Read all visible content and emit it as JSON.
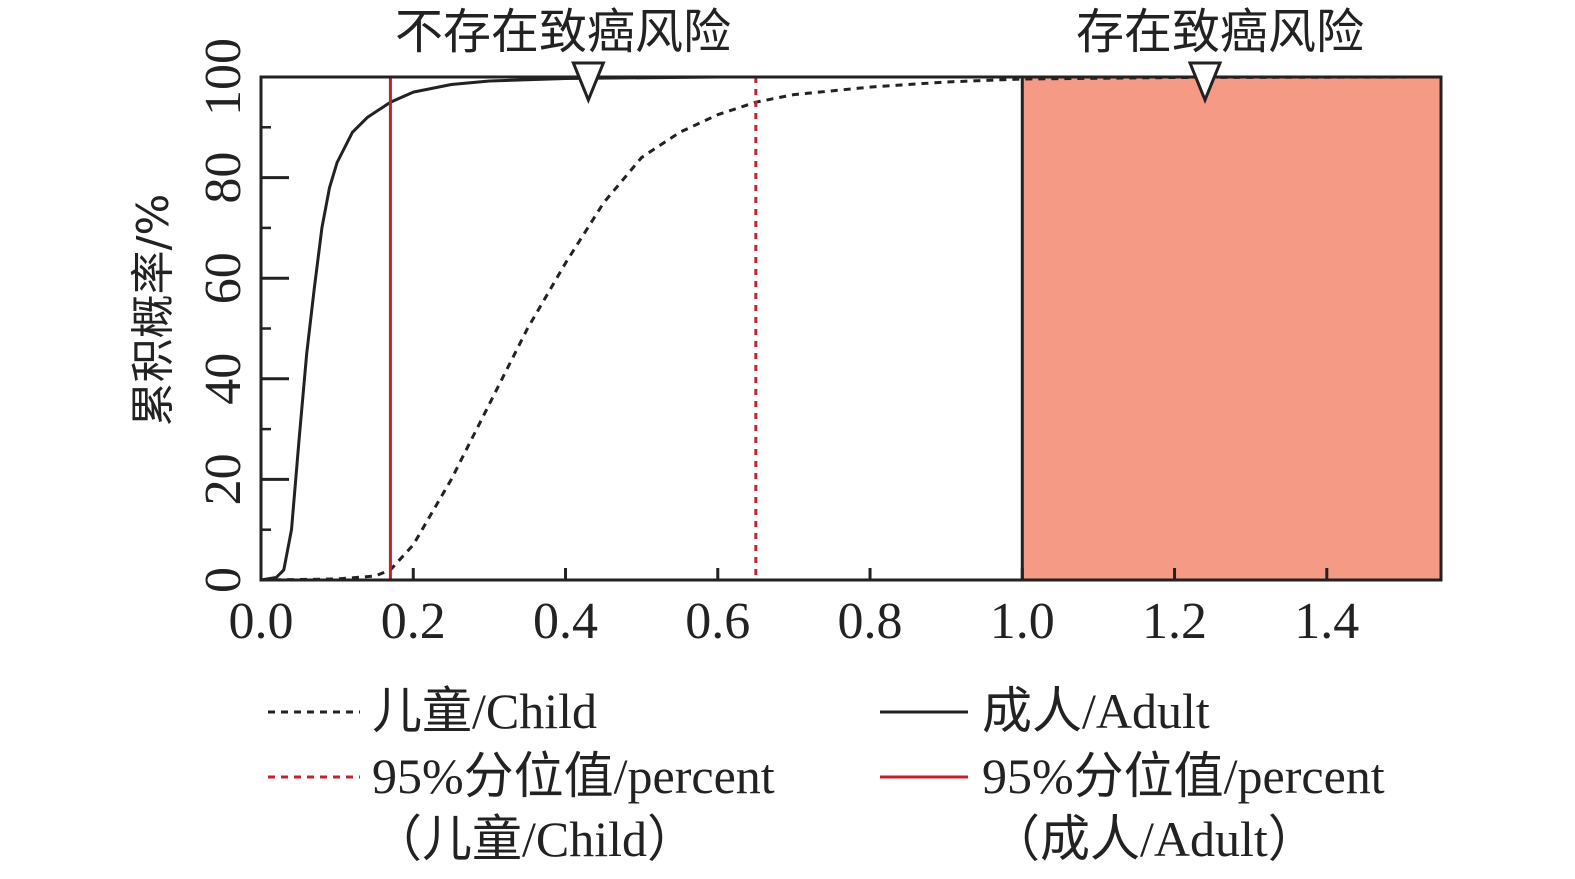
{
  "chart_data": {
    "type": "line",
    "title": "",
    "ylabel": "累积概率/%",
    "xlabel": "",
    "xlim": [
      0.0,
      1.55
    ],
    "ylim": [
      0,
      100
    ],
    "x_ticks": [
      "0.0",
      "0.2",
      "0.4",
      "0.6",
      "0.8",
      "1.0",
      "1.2",
      "1.4"
    ],
    "y_ticks": [
      "0",
      "20",
      "40",
      "60",
      "80",
      "100"
    ],
    "grid": false,
    "legend_position": "below",
    "region_labels": [
      {
        "label": "不存在致癌风险",
        "marker_x": 0.43
      },
      {
        "label": "存在致癌风险",
        "marker_x": 1.24
      }
    ],
    "shaded_region": {
      "x_start": 1.0,
      "x_end": 1.55,
      "color": "#F59A84"
    },
    "series": [
      {
        "name": "儿童/Child",
        "style": "dotted",
        "color": "#222222",
        "points": [
          [
            0.0,
            0
          ],
          [
            0.1,
            0.2
          ],
          [
            0.15,
            0.8
          ],
          [
            0.17,
            2
          ],
          [
            0.2,
            7
          ],
          [
            0.25,
            20
          ],
          [
            0.3,
            35
          ],
          [
            0.35,
            50
          ],
          [
            0.4,
            63
          ],
          [
            0.45,
            75
          ],
          [
            0.5,
            84
          ],
          [
            0.55,
            89
          ],
          [
            0.6,
            92.5
          ],
          [
            0.65,
            95
          ],
          [
            0.7,
            96.5
          ],
          [
            0.8,
            98
          ],
          [
            0.9,
            99
          ],
          [
            1.0,
            99.6
          ],
          [
            1.2,
            99.9
          ],
          [
            1.55,
            100
          ]
        ]
      },
      {
        "name": "成人/Adult",
        "style": "solid",
        "color": "#222222",
        "points": [
          [
            0.0,
            0
          ],
          [
            0.02,
            0.5
          ],
          [
            0.03,
            2
          ],
          [
            0.04,
            10
          ],
          [
            0.05,
            28
          ],
          [
            0.06,
            45
          ],
          [
            0.07,
            58
          ],
          [
            0.08,
            70
          ],
          [
            0.09,
            78
          ],
          [
            0.1,
            83
          ],
          [
            0.12,
            89
          ],
          [
            0.14,
            92
          ],
          [
            0.16,
            94
          ],
          [
            0.17,
            95
          ],
          [
            0.2,
            97
          ],
          [
            0.25,
            98.5
          ],
          [
            0.3,
            99.2
          ],
          [
            0.4,
            99.7
          ],
          [
            0.6,
            100
          ],
          [
            1.55,
            100
          ]
        ]
      }
    ],
    "percentile_lines": [
      {
        "name": "95%分位值/percent（儿童/Child）",
        "x": 0.65,
        "style": "dotted",
        "color": "#C8202A"
      },
      {
        "name": "95%分位值/percent（成人/Adult）",
        "x": 0.17,
        "style": "solid",
        "color": "#C8202A"
      }
    ]
  },
  "legend": {
    "child": {
      "label": "儿童/Child"
    },
    "adult": {
      "label": "成人/Adult"
    },
    "child_p95": {
      "label_line1": "95%分位值/percent",
      "label_line2": "（儿童/Child）"
    },
    "adult_p95": {
      "label_line1": "95%分位值/percent",
      "label_line2": "（成人/Adult）"
    }
  }
}
